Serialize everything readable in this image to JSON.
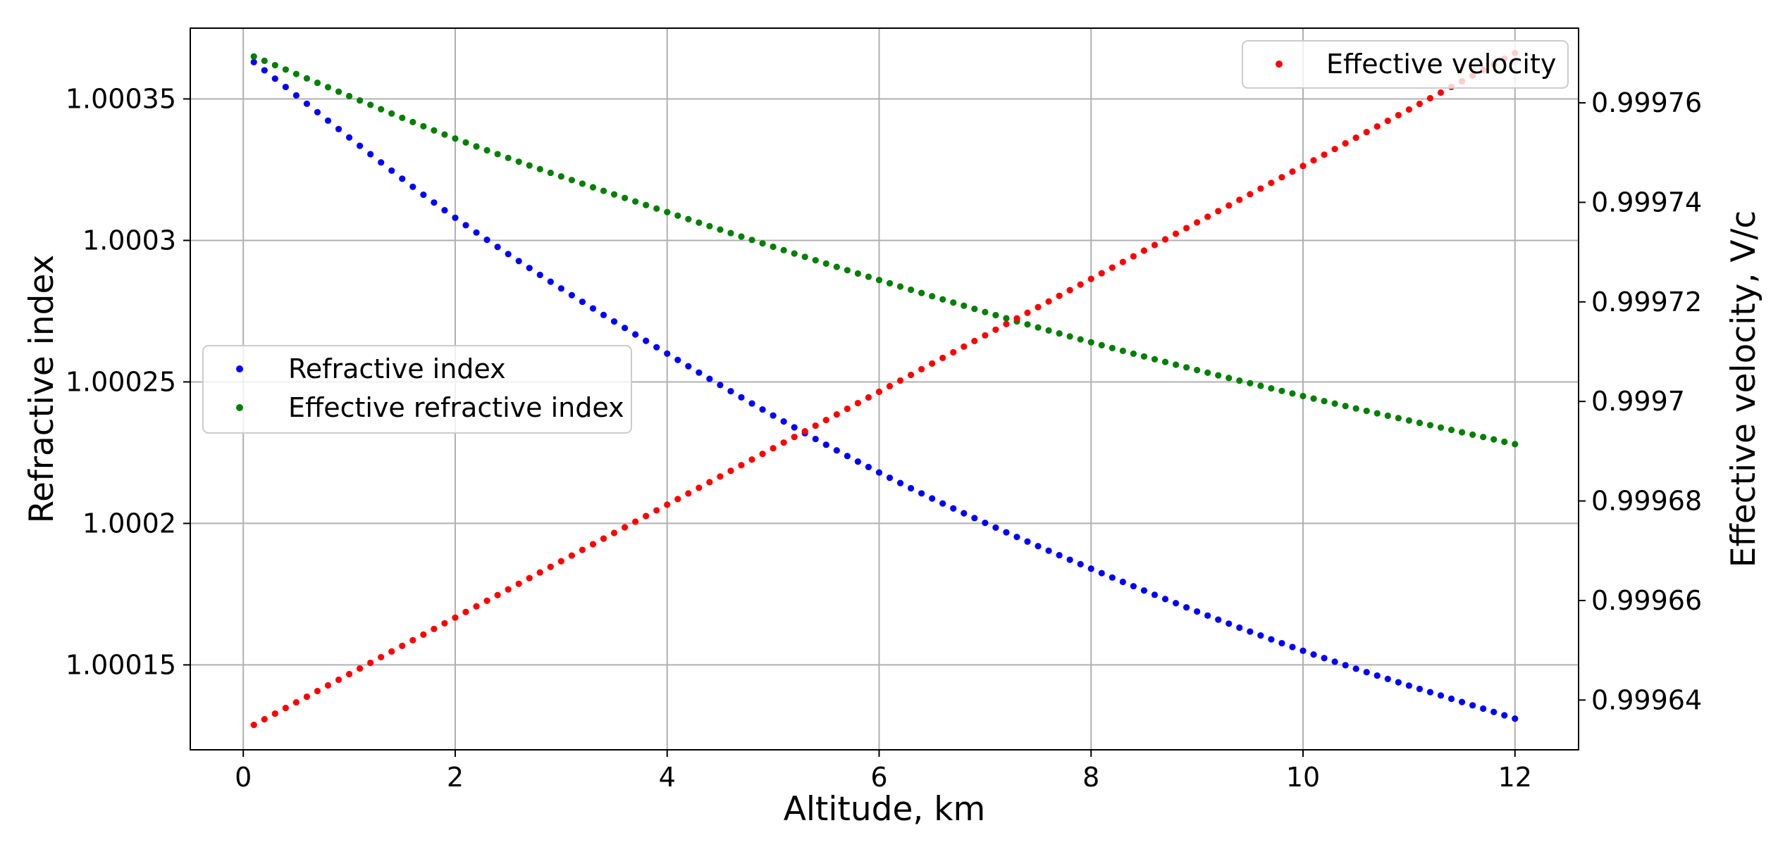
{
  "chart_data": {
    "type": "scatter",
    "xlabel": "Altitude, km",
    "ylabel_left": "Refractive index",
    "ylabel_right": "Effective velocity, V/c",
    "xlim": [
      -0.5,
      12.6
    ],
    "ylim_left": [
      1.00012,
      1.000375
    ],
    "ylim_right": [
      0.99963,
      0.999775
    ],
    "x_ticks": [
      "0",
      "2",
      "4",
      "6",
      "8",
      "10",
      "12"
    ],
    "x_tick_values": [
      0,
      2,
      4,
      6,
      8,
      10,
      12
    ],
    "y_left_ticks": [
      "1.00015",
      "1.0002",
      "1.00025",
      "1.0003",
      "1.00035"
    ],
    "y_left_tick_values": [
      1.00015,
      1.0002,
      1.00025,
      1.0003,
      1.00035
    ],
    "y_right_ticks": [
      "0.99964",
      "0.99966",
      "0.99968",
      "0.9997",
      "0.99972",
      "0.99974",
      "0.99976"
    ],
    "y_right_tick_values": [
      0.99964,
      0.99966,
      0.99968,
      0.9997,
      0.99972,
      0.99974,
      0.99976
    ],
    "grid": true,
    "series": [
      {
        "name": "Refractive index",
        "axis": "left",
        "color": "#0000ff",
        "x_range": [
          0.1,
          12
        ],
        "points": 120,
        "samples": [
          {
            "x": 0.1,
            "y": 1.000363
          },
          {
            "x": 2,
            "y": 1.000308
          },
          {
            "x": 4,
            "y": 1.00026
          },
          {
            "x": 6,
            "y": 1.000218
          },
          {
            "x": 8,
            "y": 1.000184
          },
          {
            "x": 10,
            "y": 1.000155
          },
          {
            "x": 12,
            "y": 1.000131
          }
        ]
      },
      {
        "name": "Effective refractive index",
        "axis": "left",
        "color": "#008000",
        "x_range": [
          0.1,
          12
        ],
        "points": 120,
        "samples": [
          {
            "x": 0.1,
            "y": 1.000365
          },
          {
            "x": 2,
            "y": 1.000336
          },
          {
            "x": 4,
            "y": 1.00031
          },
          {
            "x": 6,
            "y": 1.000286
          },
          {
            "x": 8,
            "y": 1.000264
          },
          {
            "x": 10,
            "y": 1.000245
          },
          {
            "x": 12,
            "y": 1.000228
          }
        ]
      },
      {
        "name": "Effective velocity",
        "axis": "right",
        "color": "#ff0000",
        "x_range": [
          0.1,
          12
        ],
        "points": 120,
        "samples": [
          {
            "x": 0.1,
            "y": 0.999635
          },
          {
            "x": 12,
            "y": 0.99977
          }
        ]
      }
    ],
    "legends": [
      {
        "placement": "upper-right",
        "entries": [
          "Effective velocity"
        ]
      },
      {
        "placement": "center-left",
        "entries": [
          "Refractive index",
          "Effective refractive index"
        ]
      }
    ]
  }
}
